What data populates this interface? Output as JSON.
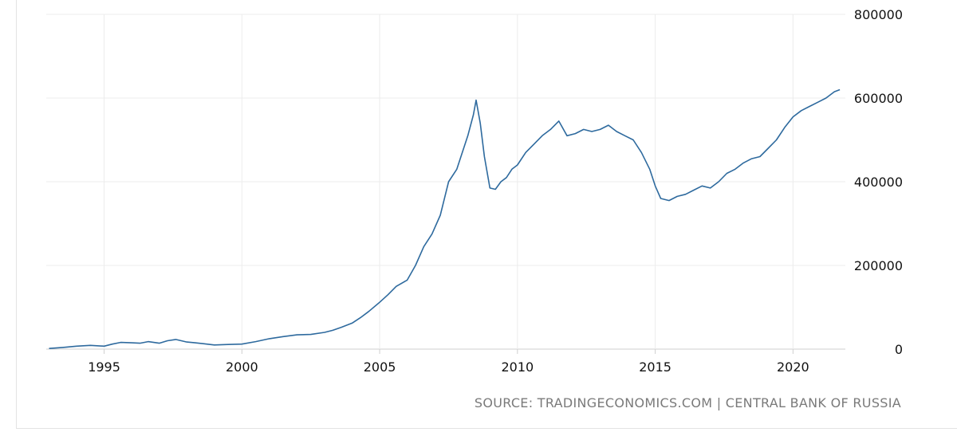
{
  "chart_data": {
    "type": "line",
    "title": "",
    "xlabel": "",
    "ylabel": "",
    "xlim": [
      1992.9,
      2021.9
    ],
    "ylim": [
      0,
      800000
    ],
    "x_ticks": [
      1995,
      2000,
      2005,
      2010,
      2015,
      2020
    ],
    "x_tick_labels": [
      "1995",
      "2000",
      "2005",
      "2010",
      "2015",
      "2020"
    ],
    "y_ticks": [
      0,
      200000,
      400000,
      600000,
      800000
    ],
    "y_tick_labels": [
      "0",
      "200000",
      "400000",
      "600000",
      "800000"
    ],
    "grid": true,
    "legend": "none",
    "series_color": "#2e6a9e",
    "series": [
      {
        "x": [
          1993.0,
          1993.5,
          1994.0,
          1994.5,
          1995.0,
          1995.3,
          1995.6,
          1996.0,
          1996.3,
          1996.6,
          1997.0,
          1997.3,
          1997.6,
          1998.0,
          1998.3,
          1998.6,
          1999.0,
          1999.5,
          2000.0,
          2000.5,
          2001.0,
          2001.5,
          2002.0,
          2002.5,
          2003.0,
          2003.3,
          2003.6,
          2004.0,
          2004.3,
          2004.6,
          2005.0,
          2005.3,
          2005.6,
          2006.0,
          2006.3,
          2006.6,
          2006.9,
          2007.2,
          2007.5,
          2007.8,
          2008.0,
          2008.2,
          2008.4,
          2008.5,
          2008.65,
          2008.8,
          2009.0,
          2009.2,
          2009.4,
          2009.6,
          2009.8,
          2010.0,
          2010.3,
          2010.6,
          2010.9,
          2011.2,
          2011.5,
          2011.8,
          2012.1,
          2012.4,
          2012.7,
          2013.0,
          2013.3,
          2013.6,
          2013.9,
          2014.2,
          2014.5,
          2014.8,
          2015.0,
          2015.2,
          2015.5,
          2015.8,
          2016.1,
          2016.4,
          2016.7,
          2017.0,
          2017.3,
          2017.6,
          2017.9,
          2018.2,
          2018.5,
          2018.8,
          2019.1,
          2019.4,
          2019.7,
          2020.0,
          2020.3,
          2020.6,
          2020.9,
          2021.2,
          2021.5,
          2021.7
        ],
        "y": [
          1500,
          4000,
          7000,
          9000,
          7000,
          12000,
          16000,
          15000,
          14000,
          18000,
          14000,
          20000,
          23000,
          17000,
          15000,
          13000,
          10000,
          11000,
          12000,
          18000,
          25000,
          30000,
          34000,
          35000,
          40000,
          45000,
          52000,
          62000,
          75000,
          90000,
          112000,
          130000,
          150000,
          165000,
          200000,
          245000,
          275000,
          320000,
          400000,
          430000,
          470000,
          510000,
          560000,
          595000,
          540000,
          460000,
          385000,
          382000,
          400000,
          410000,
          430000,
          440000,
          470000,
          490000,
          510000,
          525000,
          545000,
          510000,
          515000,
          525000,
          520000,
          525000,
          535000,
          520000,
          510000,
          500000,
          470000,
          430000,
          390000,
          360000,
          355000,
          365000,
          370000,
          380000,
          390000,
          385000,
          400000,
          420000,
          430000,
          445000,
          455000,
          460000,
          480000,
          500000,
          530000,
          555000,
          570000,
          580000,
          590000,
          600000,
          615000,
          620000
        ]
      }
    ]
  },
  "footer": {
    "source": "SOURCE: TRADINGECONOMICS.COM | CENTRAL BANK OF RUSSIA"
  }
}
